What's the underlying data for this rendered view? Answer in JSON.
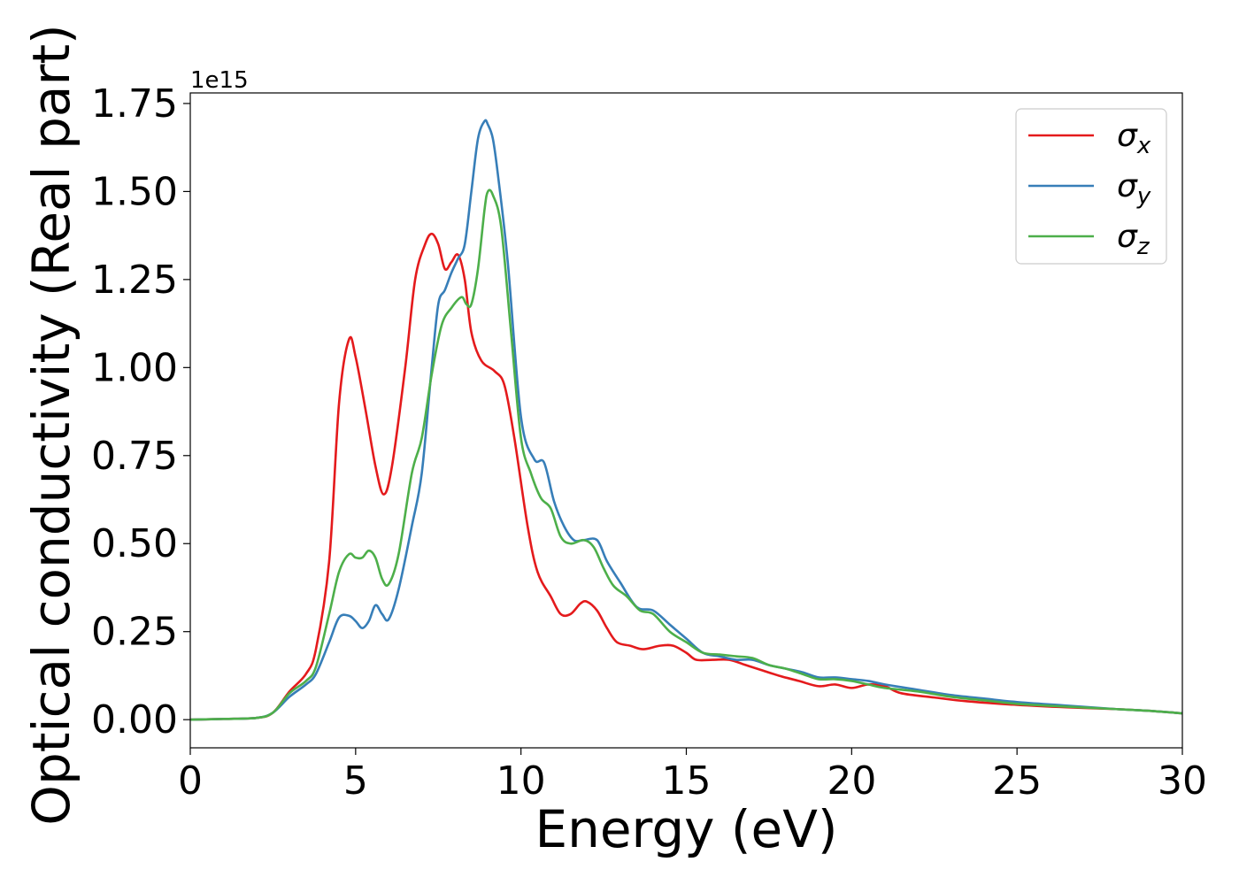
{
  "chart_data": {
    "type": "line",
    "title": "",
    "xlabel": "Energy (eV)",
    "ylabel": "Optical conductivity (Real part)",
    "y_offset_text": "1e15",
    "y_scale_factor": 1000000000000000.0,
    "xlim": [
      0,
      30
    ],
    "ylim": [
      -0.08,
      1.78
    ],
    "x_ticks": [
      0,
      5,
      10,
      15,
      20,
      25,
      30
    ],
    "x_tick_labels": [
      "0",
      "5",
      "10",
      "15",
      "20",
      "25",
      "30"
    ],
    "y_ticks": [
      0.0,
      0.25,
      0.5,
      0.75,
      1.0,
      1.25,
      1.5,
      1.75
    ],
    "y_tick_labels": [
      "0.00",
      "0.25",
      "0.50",
      "0.75",
      "1.00",
      "1.25",
      "1.50",
      "1.75"
    ],
    "grid": false,
    "legend_position": "top-right",
    "series": [
      {
        "name": "σx",
        "legend_base": "σ",
        "legend_sub": "x",
        "color": "#e41a1c",
        "x": [
          0,
          1,
          2,
          2.5,
          3,
          3.5,
          3.8,
          4.2,
          4.5,
          4.8,
          5.0,
          5.3,
          5.6,
          5.85,
          6.1,
          6.5,
          6.8,
          7.1,
          7.3,
          7.5,
          7.7,
          7.9,
          8.1,
          8.3,
          8.5,
          8.8,
          9.2,
          9.5,
          9.8,
          10.2,
          10.5,
          10.9,
          11.2,
          11.5,
          11.8,
          12.0,
          12.3,
          12.6,
          12.9,
          13.3,
          13.7,
          14.2,
          14.6,
          15.0,
          15.3,
          15.8,
          16.3,
          16.8,
          17.3,
          17.8,
          18.4,
          19.0,
          19.5,
          20.0,
          20.5,
          21.0,
          21.5,
          22.5,
          23.5,
          25.0,
          26.5,
          28.0,
          29.0,
          30.0
        ],
        "values": [
          0.0,
          0.002,
          0.005,
          0.02,
          0.08,
          0.13,
          0.2,
          0.45,
          0.9,
          1.08,
          1.03,
          0.88,
          0.72,
          0.64,
          0.72,
          1.0,
          1.25,
          1.35,
          1.38,
          1.35,
          1.28,
          1.3,
          1.32,
          1.25,
          1.1,
          1.02,
          0.99,
          0.95,
          0.8,
          0.55,
          0.42,
          0.35,
          0.3,
          0.3,
          0.33,
          0.335,
          0.31,
          0.26,
          0.22,
          0.21,
          0.2,
          0.21,
          0.21,
          0.19,
          0.17,
          0.17,
          0.17,
          0.155,
          0.14,
          0.125,
          0.11,
          0.095,
          0.1,
          0.09,
          0.1,
          0.095,
          0.075,
          0.063,
          0.052,
          0.042,
          0.035,
          0.03,
          0.025,
          0.018
        ]
      },
      {
        "name": "σy",
        "legend_base": "σ",
        "legend_sub": "y",
        "color": "#377eb8",
        "x": [
          0,
          1,
          2,
          2.5,
          3,
          3.5,
          3.8,
          4.2,
          4.5,
          4.8,
          5.0,
          5.2,
          5.4,
          5.6,
          5.8,
          6.0,
          6.3,
          6.7,
          7.0,
          7.3,
          7.5,
          7.7,
          7.9,
          8.1,
          8.3,
          8.5,
          8.7,
          8.9,
          9.0,
          9.15,
          9.3,
          9.6,
          10.0,
          10.4,
          10.7,
          11.0,
          11.3,
          11.6,
          11.9,
          12.3,
          12.6,
          13.0,
          13.5,
          14.0,
          14.5,
          15.0,
          15.5,
          16.0,
          16.5,
          17.0,
          17.5,
          18.0,
          18.5,
          19.0,
          19.5,
          20.0,
          20.5,
          21.0,
          22.0,
          23.0,
          24.0,
          25.0,
          26.5,
          28.0,
          29.0,
          30.0
        ],
        "values": [
          0.0,
          0.002,
          0.005,
          0.02,
          0.065,
          0.1,
          0.13,
          0.22,
          0.29,
          0.295,
          0.28,
          0.26,
          0.28,
          0.325,
          0.3,
          0.285,
          0.37,
          0.55,
          0.7,
          1.0,
          1.18,
          1.22,
          1.27,
          1.31,
          1.35,
          1.5,
          1.65,
          1.7,
          1.69,
          1.65,
          1.55,
          1.3,
          0.86,
          0.74,
          0.73,
          0.62,
          0.55,
          0.51,
          0.51,
          0.51,
          0.45,
          0.39,
          0.32,
          0.31,
          0.27,
          0.23,
          0.19,
          0.18,
          0.17,
          0.17,
          0.155,
          0.145,
          0.135,
          0.12,
          0.12,
          0.115,
          0.11,
          0.1,
          0.085,
          0.07,
          0.06,
          0.05,
          0.04,
          0.03,
          0.025,
          0.018
        ]
      },
      {
        "name": "σz",
        "legend_base": "σ",
        "legend_sub": "z",
        "color": "#4daf4a",
        "x": [
          0,
          1,
          2,
          2.5,
          3,
          3.5,
          3.8,
          4.2,
          4.5,
          4.8,
          5.0,
          5.2,
          5.4,
          5.6,
          5.8,
          6.0,
          6.3,
          6.7,
          7.0,
          7.3,
          7.6,
          7.9,
          8.2,
          8.35,
          8.5,
          8.7,
          8.9,
          9.0,
          9.15,
          9.4,
          9.7,
          10.0,
          10.3,
          10.6,
          10.9,
          11.2,
          11.5,
          11.9,
          12.2,
          12.5,
          12.8,
          13.2,
          13.6,
          14.0,
          14.5,
          15.0,
          15.5,
          16.0,
          16.5,
          17.0,
          17.5,
          18.0,
          18.5,
          19.0,
          19.5,
          20.0,
          20.5,
          21.0,
          22.0,
          23.0,
          24.0,
          25.0,
          26.5,
          28.0,
          29.0,
          30.0
        ],
        "values": [
          0.0,
          0.002,
          0.005,
          0.02,
          0.075,
          0.11,
          0.15,
          0.3,
          0.42,
          0.47,
          0.46,
          0.46,
          0.48,
          0.46,
          0.4,
          0.385,
          0.47,
          0.7,
          0.8,
          0.98,
          1.12,
          1.17,
          1.2,
          1.18,
          1.18,
          1.28,
          1.45,
          1.5,
          1.49,
          1.4,
          1.1,
          0.8,
          0.7,
          0.63,
          0.6,
          0.52,
          0.5,
          0.51,
          0.49,
          0.43,
          0.38,
          0.35,
          0.31,
          0.3,
          0.25,
          0.22,
          0.19,
          0.185,
          0.18,
          0.175,
          0.155,
          0.145,
          0.13,
          0.115,
          0.115,
          0.11,
          0.1,
          0.09,
          0.08,
          0.065,
          0.055,
          0.045,
          0.037,
          0.03,
          0.025,
          0.018
        ]
      }
    ]
  }
}
